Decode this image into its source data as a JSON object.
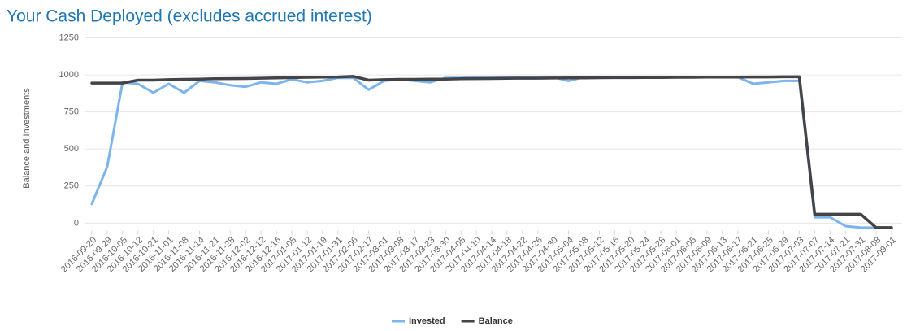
{
  "chart_data": {
    "type": "line",
    "title": "Your Cash Deployed (excludes accrued interest)",
    "y_label": "Balance and Investments",
    "categories": [
      "2016-09-20",
      "2016-09-29",
      "2016-10-05",
      "2016-10-12",
      "2016-10-21",
      "2016-11-01",
      "2016-11-08",
      "2016-11-14",
      "2016-11-21",
      "2016-11-28",
      "2016-12-02",
      "2016-12-12",
      "2016-12-16",
      "2017-01-05",
      "2017-01-12",
      "2017-01-19",
      "2017-01-31",
      "2017-02-06",
      "2017-02-17",
      "2017-03-01",
      "2017-03-08",
      "2017-03-17",
      "2017-03-23",
      "2017-03-30",
      "2017-04-05",
      "2017-04-10",
      "2017-04-14",
      "2017-04-18",
      "2017-04-22",
      "2017-04-26",
      "2017-04-30",
      "2017-05-04",
      "2017-05-08",
      "2017-05-12",
      "2017-05-16",
      "2017-05-20",
      "2017-05-24",
      "2017-05-28",
      "2017-06-01",
      "2017-06-05",
      "2017-06-09",
      "2017-06-13",
      "2017-06-17",
      "2017-06-21",
      "2017-06-25",
      "2017-06-29",
      "2017-07-03",
      "2017-07-07",
      "2017-07-14",
      "2017-07-21",
      "2017-07-31",
      "2017-08-08",
      "2017-09-01"
    ],
    "series": [
      {
        "name": "Invested",
        "color": "#7cb5ec",
        "values": [
          130,
          380,
          950,
          940,
          880,
          940,
          880,
          960,
          950,
          930,
          920,
          950,
          940,
          970,
          950,
          960,
          980,
          980,
          900,
          960,
          970,
          960,
          950,
          980,
          980,
          985,
          985,
          985,
          985,
          985,
          985,
          960,
          985,
          985,
          985,
          985,
          985,
          985,
          985,
          985,
          985,
          985,
          985,
          940,
          950,
          960,
          960,
          40,
          40,
          -20,
          -30,
          -30,
          -30
        ]
      },
      {
        "name": "Balance",
        "color": "#434348",
        "values": [
          945,
          945,
          945,
          965,
          965,
          968,
          970,
          972,
          974,
          975,
          976,
          978,
          980,
          982,
          984,
          985,
          986,
          990,
          965,
          968,
          970,
          970,
          972,
          972,
          974,
          975,
          976,
          977,
          978,
          978,
          979,
          980,
          980,
          981,
          982,
          982,
          983,
          983,
          984,
          984,
          985,
          985,
          985,
          986,
          986,
          987,
          987,
          60,
          60,
          60,
          60,
          -30,
          -30
        ]
      }
    ],
    "ylim": [
      -50,
      1250
    ],
    "yticks": [
      0,
      250,
      500,
      750,
      1000,
      1250
    ],
    "grid": true,
    "legend": "bottom"
  }
}
